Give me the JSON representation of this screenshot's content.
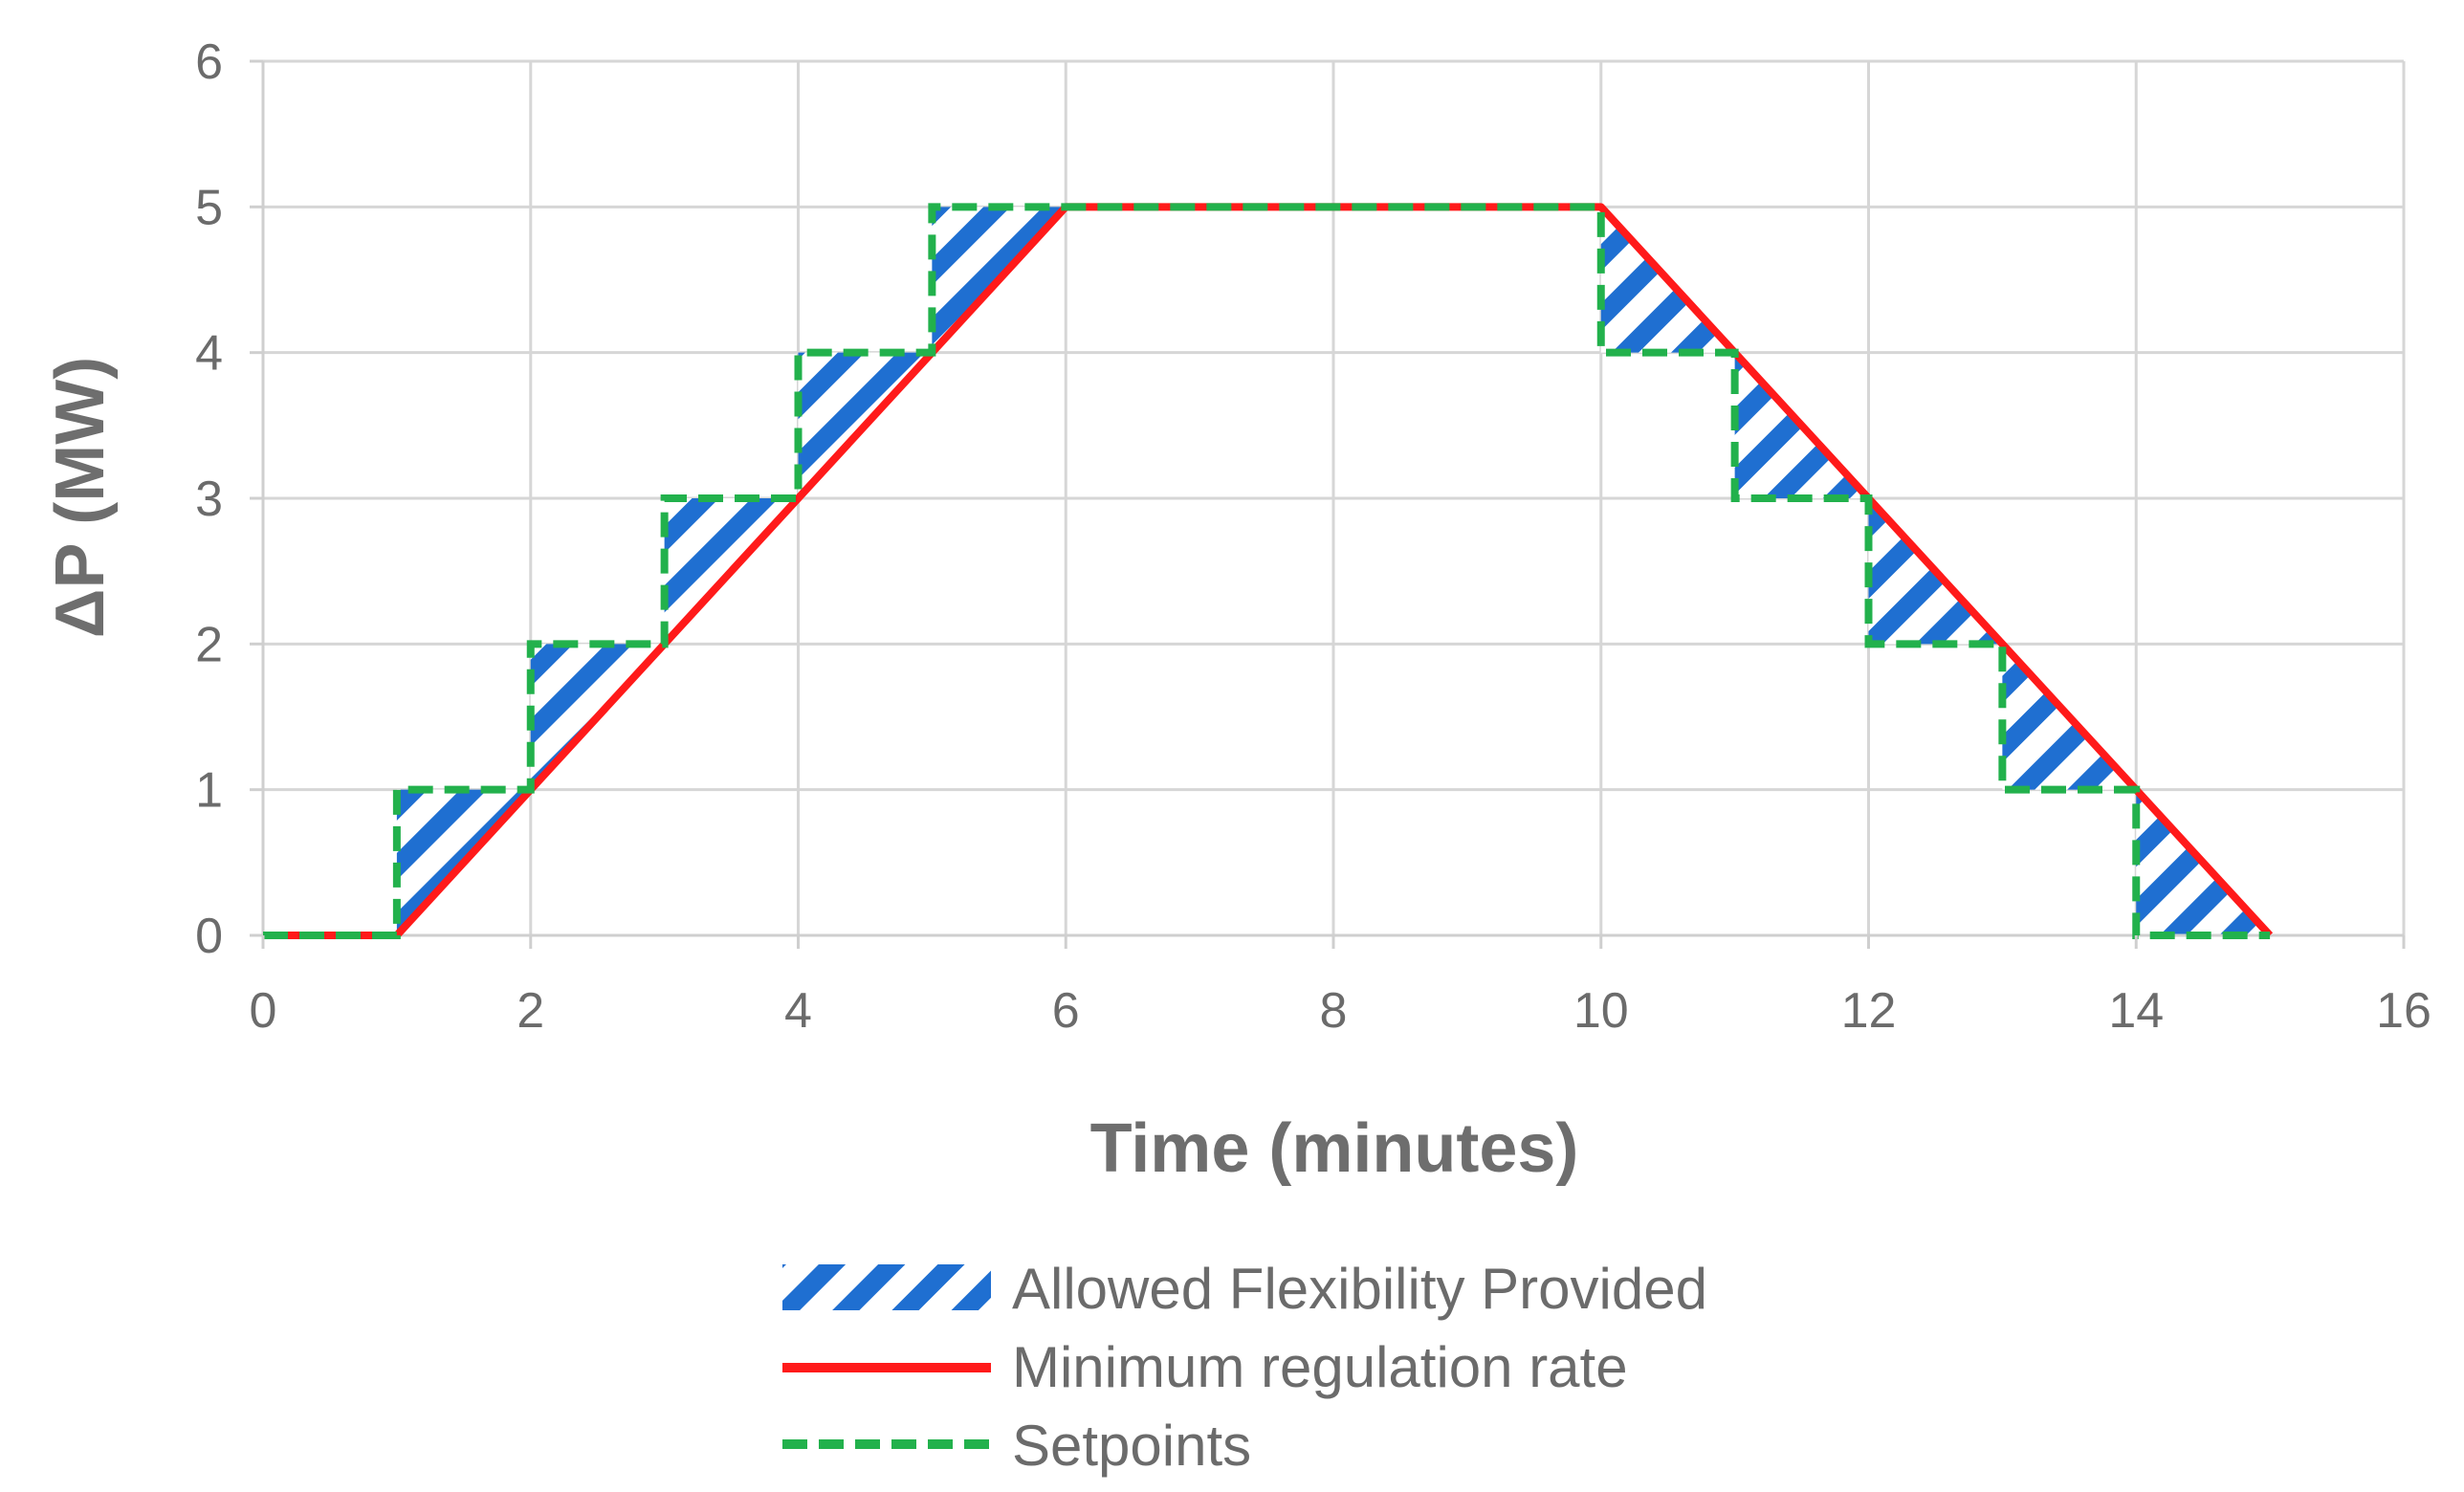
{
  "chart_data": {
    "type": "line",
    "title": "",
    "xlabel": "Time (minutes)",
    "ylabel": "ΔP (MW)",
    "xlim": [
      0,
      16
    ],
    "ylim": [
      0,
      6
    ],
    "xticks": [
      0,
      2,
      4,
      6,
      8,
      10,
      12,
      14,
      16
    ],
    "yticks": [
      0,
      1,
      2,
      3,
      4,
      5,
      6
    ],
    "grid": true,
    "legend_position": "bottom",
    "series": [
      {
        "name": "Allowed Flexibility Provided",
        "style": "hatched-area",
        "color": "#1f6fd1"
      },
      {
        "name": "Minimum regulation rate",
        "style": "solid",
        "color": "#ff1a1a",
        "x": [
          0,
          1,
          6,
          10,
          15
        ],
        "y": [
          0,
          0,
          5,
          5,
          0
        ]
      },
      {
        "name": "Setpoints",
        "style": "dashed",
        "color": "#22b14c",
        "x": [
          0,
          1,
          1,
          2,
          2,
          3,
          3,
          4,
          4,
          5,
          5,
          6,
          10,
          10,
          11,
          11,
          12,
          12,
          13,
          13,
          14,
          14,
          15
        ],
        "y": [
          0,
          0,
          1,
          1,
          2,
          2,
          3,
          3,
          4,
          4,
          5,
          5,
          5,
          4,
          4,
          3,
          3,
          2,
          2,
          1,
          1,
          0,
          0
        ]
      }
    ]
  }
}
